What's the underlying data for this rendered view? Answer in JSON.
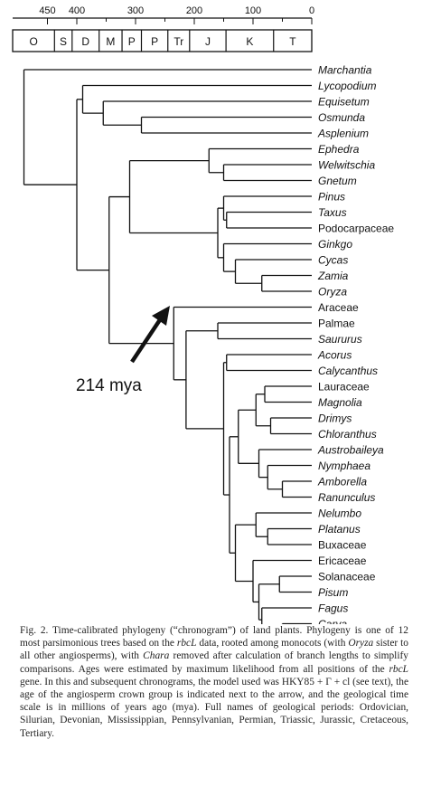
{
  "scale": {
    "tick_labels": [
      "450",
      "400",
      "300",
      "200",
      "100",
      "0"
    ],
    "tick_values": [
      450,
      400,
      300,
      200,
      100,
      0
    ],
    "periods": [
      "O",
      "S",
      "D",
      "M",
      "P",
      "P",
      "Tr",
      "J",
      "K",
      "T"
    ],
    "period_boundaries_mya": [
      460,
      438,
      408,
      362,
      323,
      290,
      245,
      208,
      146,
      65,
      0
    ]
  },
  "taxa": [
    {
      "name": "Marchantia",
      "italic": true
    },
    {
      "name": "Lycopodium",
      "italic": true
    },
    {
      "name": "Equisetum",
      "italic": true
    },
    {
      "name": "Osmunda",
      "italic": true
    },
    {
      "name": "Asplenium",
      "italic": true
    },
    {
      "name": "Ephedra",
      "italic": true
    },
    {
      "name": "Welwitschia",
      "italic": true
    },
    {
      "name": "Gnetum",
      "italic": true
    },
    {
      "name": "Pinus",
      "italic": true
    },
    {
      "name": "Taxus",
      "italic": true
    },
    {
      "name": "Podocarpaceae",
      "italic": false
    },
    {
      "name": "Ginkgo",
      "italic": true
    },
    {
      "name": "Cycas",
      "italic": true
    },
    {
      "name": "Zamia",
      "italic": true
    },
    {
      "name": "Oryza",
      "italic": true
    },
    {
      "name": "Araceae",
      "italic": false
    },
    {
      "name": "Palmae",
      "italic": false
    },
    {
      "name": "Saururus",
      "italic": true
    },
    {
      "name": "Acorus",
      "italic": true
    },
    {
      "name": "Calycanthus",
      "italic": true
    },
    {
      "name": "Lauraceae",
      "italic": false
    },
    {
      "name": "Magnolia",
      "italic": true
    },
    {
      "name": "Drimys",
      "italic": true
    },
    {
      "name": "Chloranthus",
      "italic": true
    },
    {
      "name": "Austrobaileya",
      "italic": true
    },
    {
      "name": "Nymphaea",
      "italic": true
    },
    {
      "name": "Amborella",
      "italic": true
    },
    {
      "name": "Ranunculus",
      "italic": true
    },
    {
      "name": "Nelumbo",
      "italic": true
    },
    {
      "name": "Platanus",
      "italic": true
    },
    {
      "name": "Buxaceae",
      "italic": false
    },
    {
      "name": "Ericaceae",
      "italic": false
    },
    {
      "name": "Solanaceae",
      "italic": false
    },
    {
      "name": "Pisum",
      "italic": true
    },
    {
      "name": "Fagus",
      "italic": true
    },
    {
      "name": "Carya",
      "italic": true
    }
  ],
  "arrow_label": "214 mya",
  "crown_group_age_mya": 214,
  "caption": "Fig. 2.   Time-calibrated phylogeny (“chronogram”) of land plants. Phylogeny is one of 12 most parsimonious trees based on the rbcL data, rooted among monocots (with Oryza sister to all other angiosperms), with Chara removed after calculation of branch lengths to simplify comparisons. Ages were estimated by maximum likelihood from all positions of the rbcL gene. In this and subsequent chronograms, the model used was HKY85 + Γ + cl (see text), the age of the angiosperm crown group is indicated next to the arrow, and the geological time scale is in millions of years ago (mya). Full names of geological periods: Ordovician, Silurian, Devonian, Mississippian, Pennsylvanian, Permian, Triassic, Jurassic, Cretaceous, Tertiary."
}
